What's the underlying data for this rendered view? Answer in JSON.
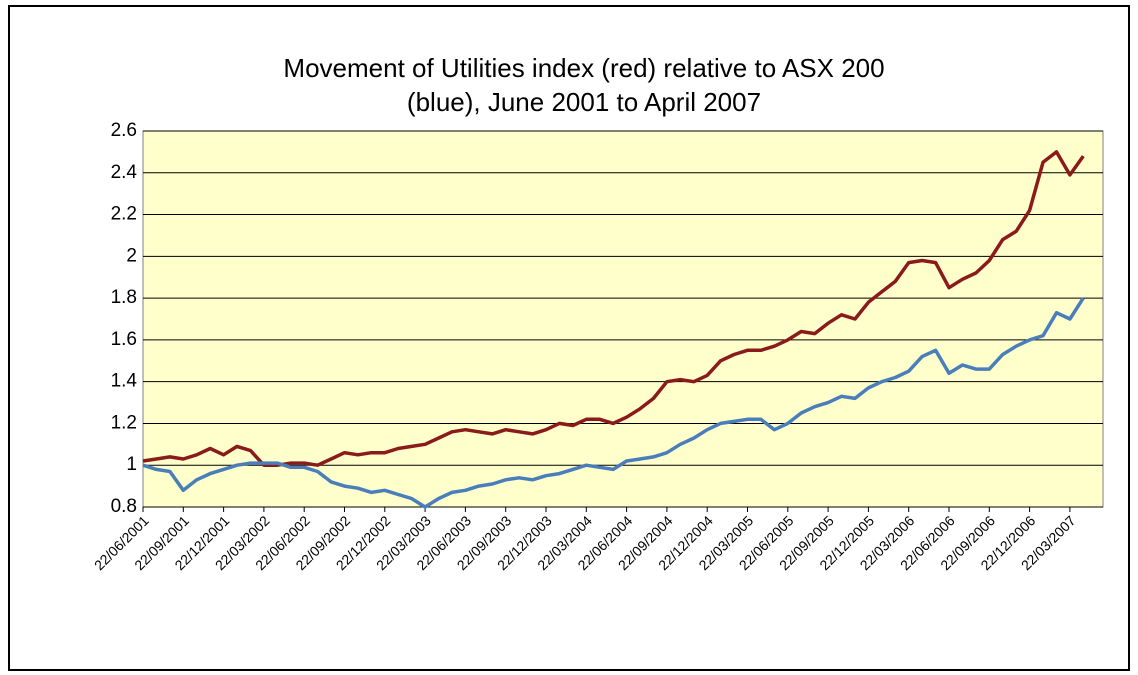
{
  "chart_data": {
    "type": "line",
    "title": [
      "Movement of Utilities index (red) relative to ASX 200",
      "(blue), June 2001 to April 2007"
    ],
    "categories": [
      "22/06/2001",
      null,
      null,
      "22/09/2001",
      null,
      null,
      "22/12/2001",
      null,
      null,
      "22/03/2002",
      null,
      null,
      "22/06/2002",
      null,
      null,
      "22/09/2002",
      null,
      null,
      "22/12/2002",
      null,
      null,
      "22/03/2003",
      null,
      null,
      "22/06/2003",
      null,
      null,
      "22/09/2003",
      null,
      null,
      "22/12/2003",
      null,
      null,
      "22/03/2004",
      null,
      null,
      "22/06/2004",
      null,
      null,
      "22/09/2004",
      null,
      null,
      "22/12/2004",
      null,
      null,
      "22/03/2005",
      null,
      null,
      "22/06/2005",
      null,
      null,
      "22/09/2005",
      null,
      null,
      "22/12/2005",
      null,
      null,
      "22/03/2006",
      null,
      null,
      "22/06/2006",
      null,
      null,
      "22/09/2006",
      null,
      null,
      "22/12/2006",
      null,
      null,
      "22/03/2007",
      null
    ],
    "series": [
      {
        "color": "#8b1a1a",
        "values": [
          1.02,
          1.03,
          1.04,
          1.03,
          1.05,
          1.08,
          1.05,
          1.09,
          1.07,
          1.0,
          1.0,
          1.01,
          1.01,
          1.0,
          1.03,
          1.06,
          1.05,
          1.06,
          1.06,
          1.08,
          1.09,
          1.1,
          1.13,
          1.16,
          1.17,
          1.16,
          1.15,
          1.17,
          1.16,
          1.15,
          1.17,
          1.2,
          1.19,
          1.22,
          1.22,
          1.2,
          1.23,
          1.27,
          1.32,
          1.4,
          1.41,
          1.4,
          1.43,
          1.5,
          1.53,
          1.55,
          1.55,
          1.57,
          1.6,
          1.64,
          1.63,
          1.68,
          1.72,
          1.7,
          1.78,
          1.83,
          1.88,
          1.97,
          1.98,
          1.97,
          1.85,
          1.89,
          1.92,
          1.98,
          2.08,
          2.12,
          2.22,
          2.45,
          2.5,
          2.39,
          2.48
        ]
      },
      {
        "color": "#4a7ebb",
        "values": [
          1.0,
          0.98,
          0.97,
          0.88,
          0.93,
          0.96,
          0.98,
          1.0,
          1.01,
          1.01,
          1.01,
          0.99,
          0.99,
          0.97,
          0.92,
          0.9,
          0.89,
          0.87,
          0.88,
          0.86,
          0.84,
          0.8,
          0.84,
          0.87,
          0.88,
          0.9,
          0.91,
          0.93,
          0.94,
          0.93,
          0.95,
          0.96,
          0.98,
          1.0,
          0.99,
          0.98,
          1.02,
          1.03,
          1.04,
          1.06,
          1.1,
          1.13,
          1.17,
          1.2,
          1.21,
          1.22,
          1.22,
          1.17,
          1.2,
          1.25,
          1.28,
          1.3,
          1.33,
          1.32,
          1.37,
          1.4,
          1.42,
          1.45,
          1.52,
          1.55,
          1.44,
          1.48,
          1.46,
          1.46,
          1.53,
          1.57,
          1.6,
          1.62,
          1.73,
          1.7,
          1.8
        ]
      }
    ],
    "ylim": [
      0.8,
      2.6
    ],
    "yticks": [
      0.8,
      1,
      1.2,
      1.4,
      1.6,
      1.8,
      2,
      2.2,
      2.4,
      2.6
    ],
    "grid": true,
    "plot_background": "#ffffcc"
  }
}
